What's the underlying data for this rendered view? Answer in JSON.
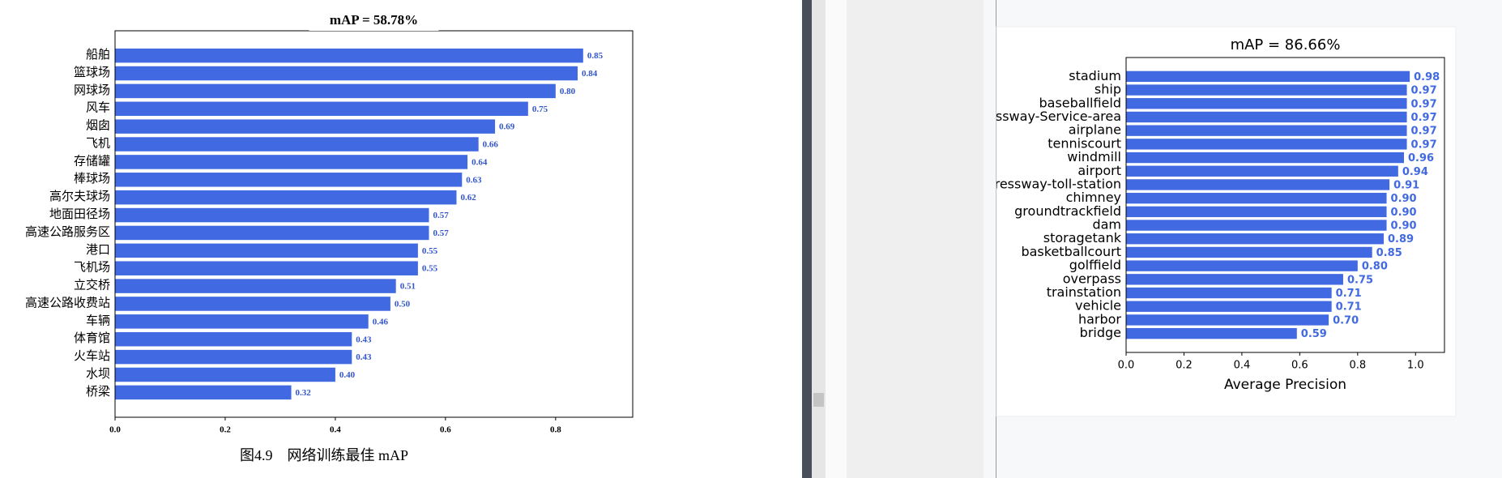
{
  "chart_data": [
    {
      "type": "barh",
      "title": "mAP = 58.78%",
      "color": "#4169e1",
      "categories": [
        "船舶",
        "篮球场",
        "网球场",
        "风车",
        "烟囱",
        "飞机",
        "存储罐",
        "棒球场",
        "高尔夫球场",
        "地面田径场",
        "高速公路服务区",
        "港口",
        "飞机场",
        "立交桥",
        "高速公路收费站",
        "车辆",
        "体育馆",
        "火车站",
        "水坝",
        "桥梁"
      ],
      "values": [
        0.85,
        0.84,
        0.8,
        0.75,
        0.69,
        0.66,
        0.64,
        0.63,
        0.62,
        0.57,
        0.57,
        0.55,
        0.55,
        0.51,
        0.5,
        0.46,
        0.43,
        0.43,
        0.4,
        0.32
      ],
      "value_labels": [
        "0.85",
        "0.84",
        "0.80",
        "0.75",
        "0.69",
        "0.66",
        "0.64",
        "0.63",
        "0.62",
        "0.57",
        "0.57",
        "0.55",
        "0.55",
        "0.51",
        "0.50",
        "0.46",
        "0.43",
        "0.43",
        "0.40",
        "0.32"
      ],
      "xlim": [
        0,
        0.94
      ],
      "xticks": [
        {
          "value": 0,
          "label": "0.0"
        },
        0.2,
        0.4,
        0.6,
        0.8
      ],
      "caption": "图4.9　网络训练最佳 mAP"
    },
    {
      "type": "barh",
      "title": "mAP = 86.66%",
      "color": "#4169e1",
      "xlabel": "Average Precision",
      "categories": [
        "stadium",
        "ship",
        "baseballfield",
        "expressway-Service-area",
        "airplane",
        "tenniscourt",
        "windmill",
        "airport",
        "expressway-toll-station",
        "chimney",
        "groundtrackfield",
        "dam",
        "storagetank",
        "basketballcourt",
        "golffield",
        "overpass",
        "trainstation",
        "vehicle",
        "harbor",
        "bridge"
      ],
      "values": [
        0.98,
        0.97,
        0.97,
        0.97,
        0.97,
        0.97,
        0.96,
        0.94,
        0.91,
        0.9,
        0.9,
        0.9,
        0.89,
        0.85,
        0.8,
        0.75,
        0.71,
        0.71,
        0.7,
        0.59
      ],
      "value_labels": [
        "0.98",
        "0.97",
        "0.97",
        "0.97",
        "0.97",
        "0.97",
        "0.96",
        "0.94",
        "0.91",
        "0.90",
        "0.90",
        "0.90",
        "0.89",
        "0.85",
        "0.80",
        "0.75",
        "0.71",
        "0.71",
        "0.70",
        "0.59"
      ],
      "xlim": [
        0,
        1.1
      ],
      "xticks": [
        {
          "value": 0,
          "label": "0.0"
        },
        0.2,
        0.4,
        0.6,
        0.8,
        {
          "value": 1,
          "label": "1.0"
        }
      ]
    }
  ]
}
